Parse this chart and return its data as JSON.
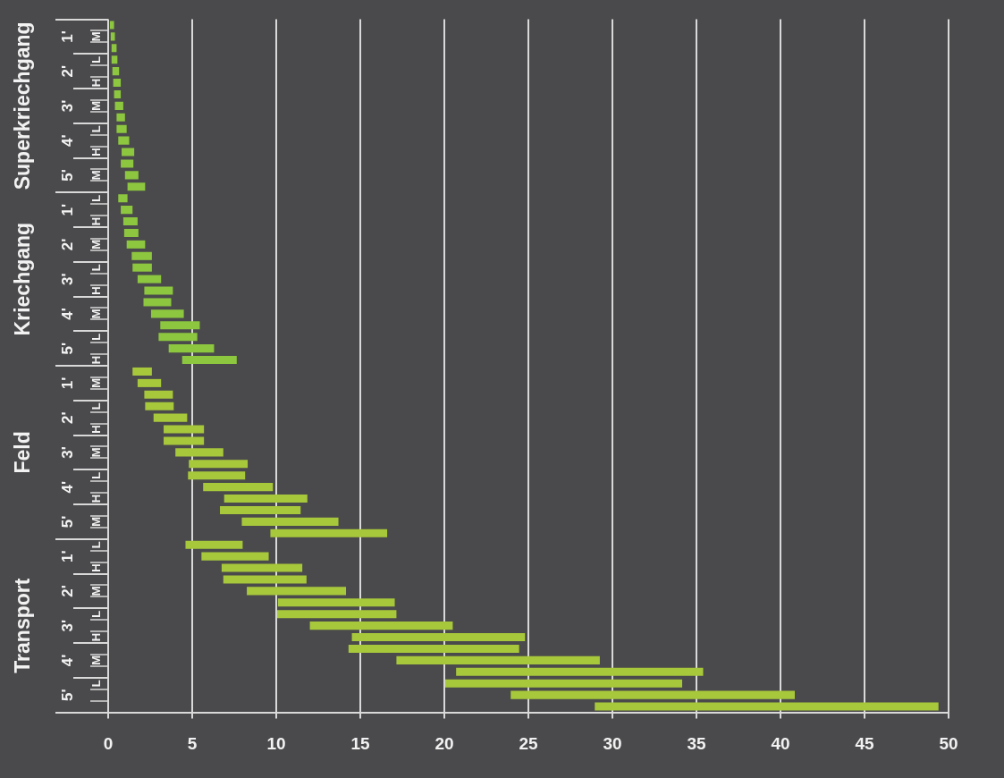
{
  "chart_data": {
    "type": "bar",
    "orientation": "horizontal",
    "categories": [
      null,
      "M",
      null,
      "L",
      null,
      "H",
      null,
      "M",
      null,
      "L",
      null,
      "H",
      null,
      "M",
      null,
      "L",
      null,
      "H",
      null,
      "M",
      null,
      "L",
      null,
      "H",
      null,
      "M",
      null,
      "L",
      null,
      "H",
      null,
      "M",
      null,
      "L",
      null,
      "H",
      null,
      "M",
      null,
      "L",
      null,
      "H",
      null,
      "M",
      null,
      "L",
      null,
      "H",
      null,
      "M",
      null,
      "L",
      null,
      "H",
      null,
      "M",
      null,
      "L",
      null,
      null
    ],
    "base": [
      0.1,
      0.15,
      0.2,
      0.2,
      0.25,
      0.3,
      0.35,
      0.4,
      0.5,
      0.5,
      0.6,
      0.8,
      0.75,
      1.0,
      1.15,
      0.6,
      0.75,
      0.9,
      0.95,
      1.1,
      1.4,
      1.45,
      1.75,
      2.15,
      2.1,
      2.55,
      3.1,
      3.0,
      3.6,
      4.4,
      1.45,
      1.75,
      2.15,
      2.2,
      2.7,
      3.3,
      3.3,
      4.0,
      4.8,
      4.75,
      5.65,
      6.9,
      6.65,
      7.95,
      9.65,
      4.6,
      5.55,
      6.75,
      6.85,
      8.25,
      10.1,
      10.05,
      12.0,
      14.5,
      14.3,
      17.15,
      20.7,
      20.05,
      23.95,
      28.95
    ],
    "values": [
      0.25,
      0.25,
      0.3,
      0.35,
      0.4,
      0.45,
      0.4,
      0.5,
      0.5,
      0.6,
      0.65,
      0.75,
      0.75,
      0.8,
      1.05,
      0.55,
      0.7,
      0.85,
      0.85,
      1.1,
      1.2,
      1.15,
      1.4,
      1.7,
      1.65,
      1.95,
      2.35,
      2.3,
      2.7,
      3.25,
      1.15,
      1.4,
      1.7,
      1.7,
      2.0,
      2.4,
      2.4,
      2.85,
      3.5,
      3.4,
      4.15,
      4.95,
      4.8,
      5.75,
      6.95,
      3.4,
      4.0,
      4.8,
      4.95,
      5.9,
      6.95,
      7.1,
      8.5,
      10.3,
      10.15,
      12.1,
      14.7,
      14.1,
      16.9,
      20.45
    ],
    "colors": [
      "#8dc63f",
      "#8dc63f",
      "#8dc63f",
      "#8dc63f",
      "#8dc63f",
      "#8dc63f",
      "#8dc63f",
      "#8dc63f",
      "#8dc63f",
      "#8dc63f",
      "#8dc63f",
      "#8dc63f",
      "#8dc63f",
      "#8dc63f",
      "#8dc63f",
      "#8dc63f",
      "#8dc63f",
      "#8dc63f",
      "#8dc63f",
      "#8dc63f",
      "#8dc63f",
      "#8dc63f",
      "#8dc63f",
      "#8dc63f",
      "#8dc63f",
      "#8dc63f",
      "#8dc63f",
      "#8dc63f",
      "#8dc63f",
      "#8dc63f",
      "#a8c83b",
      "#a8c83b",
      "#a8c83b",
      "#a8c83b",
      "#a8c83b",
      "#a8c83b",
      "#a8c83b",
      "#a8c83b",
      "#a8c83b",
      "#a8c83b",
      "#a8c83b",
      "#a8c83b",
      "#a8c83b",
      "#a8c83b",
      "#a8c83b",
      "#a8c83b",
      "#a8c83b",
      "#a8c83b",
      "#a8c83b",
      "#a8c83b",
      "#a8c83b",
      "#a8c83b",
      "#a8c83b",
      "#a8c83b",
      "#a8c83b",
      "#a8c83b",
      "#a8c83b",
      "#a8c83b",
      "#a8c83b",
      "#a8c83b"
    ],
    "xlim": [
      0,
      50
    ],
    "xticks": [
      0,
      5,
      10,
      15,
      20,
      25,
      30,
      35,
      40,
      45,
      50
    ],
    "grid": "x",
    "annotations": [
      "Superkriechgang",
      "1'",
      "2'",
      "3'",
      "4'",
      "5'",
      "Kriechgang",
      "1'",
      "2'",
      "3'",
      "4'",
      "5'",
      "Feld",
      "1'",
      "2'",
      "3'",
      "4'",
      "5'",
      "Transport",
      "1'",
      "2'",
      "3'",
      "4'",
      "5'"
    ]
  }
}
